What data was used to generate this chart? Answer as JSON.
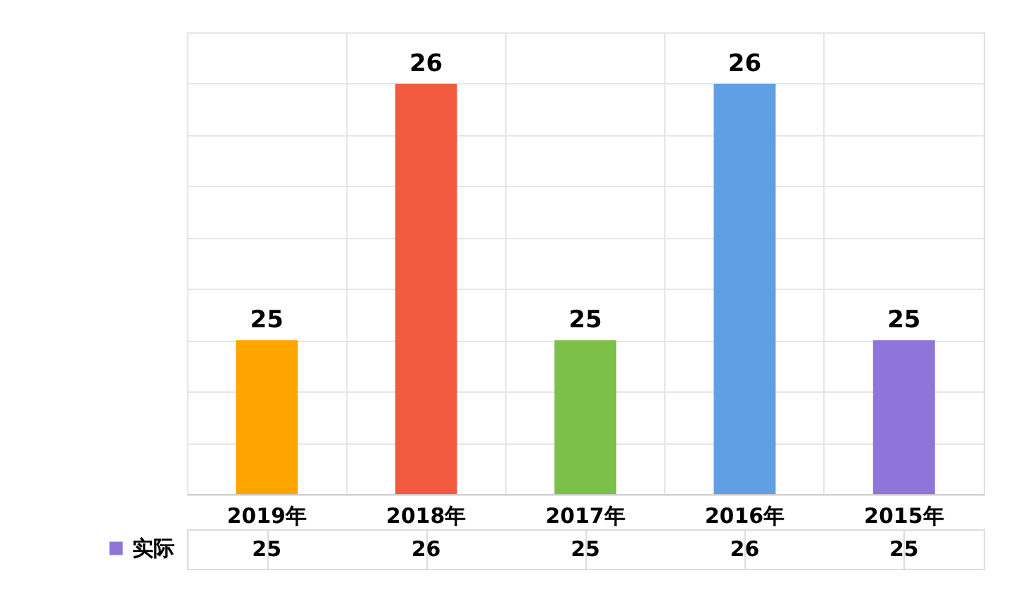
{
  "chart_data": {
    "type": "bar",
    "categories": [
      "2019年",
      "2018年",
      "2017年",
      "2016年",
      "2015年"
    ],
    "series": [
      {
        "name": "实际",
        "color": "#8f74d9",
        "values": [
          25,
          26,
          25,
          26,
          25
        ],
        "value_labels": [
          "25",
          "26",
          "25",
          "26",
          "25"
        ],
        "colors": [
          "#ffa500",
          "#f25a40",
          "#7cc04a",
          "#5f9fe3",
          "#8f74d9"
        ]
      }
    ],
    "ylim": [
      24.4,
      26.2
    ],
    "tick_labels": "x",
    "grid": true,
    "legend": "bottom left",
    "annotations": [
      "25",
      "26",
      "25",
      "26",
      "25"
    ]
  }
}
